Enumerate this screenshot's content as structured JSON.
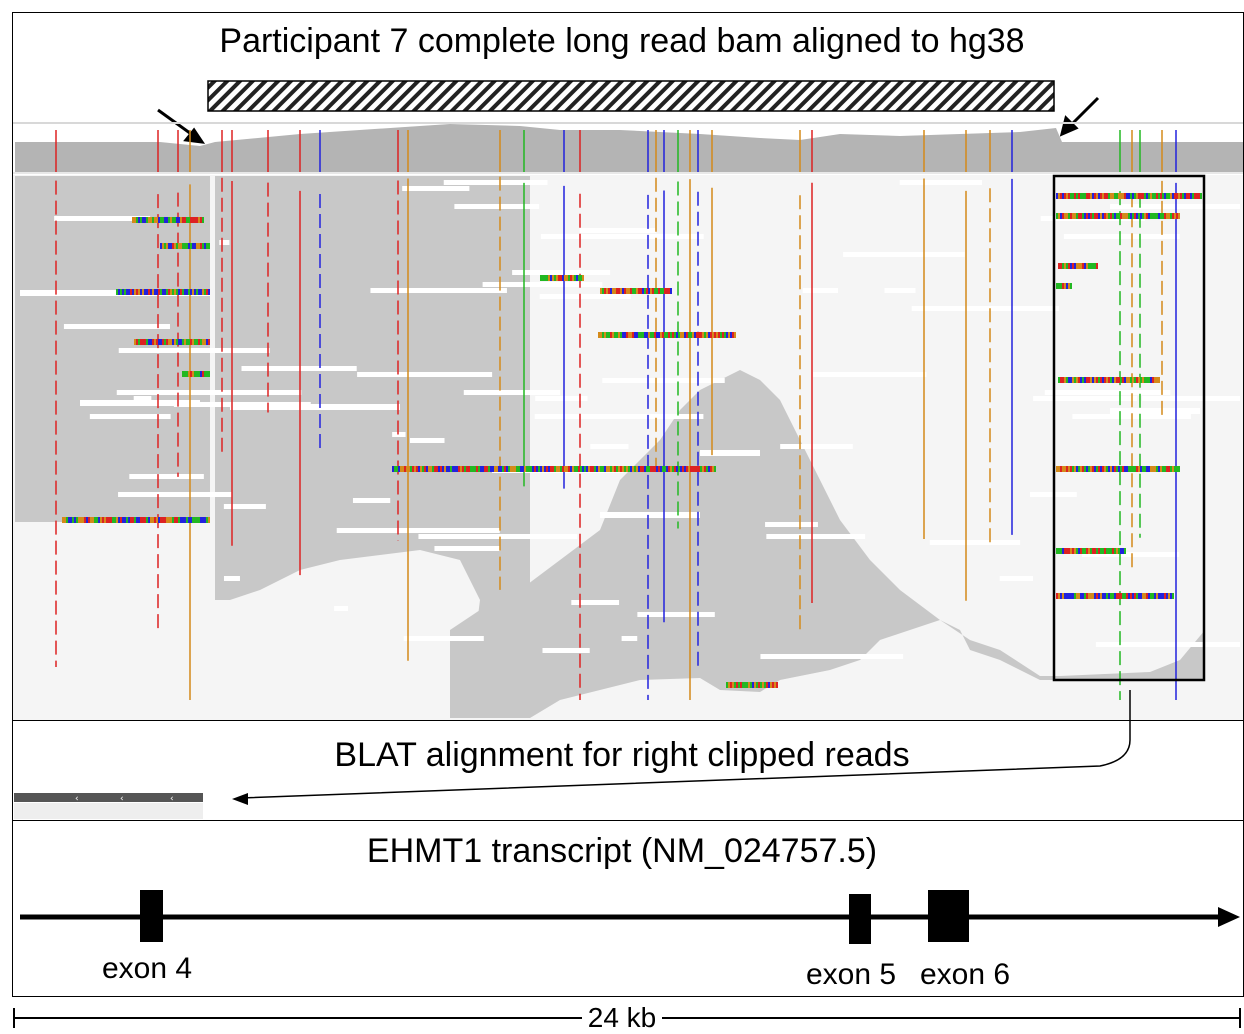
{
  "figure": {
    "title": "Participant 7 complete long read bam aligned to hg38",
    "blat_label": "BLAT alignment for right clipped reads",
    "transcript_label": "EHMT1 transcript (NM_024757.5)",
    "exons": [
      {
        "label": "exon 4"
      },
      {
        "label": "exon 5"
      },
      {
        "label": "exon 6"
      }
    ],
    "scale_label": "24 kb",
    "colors": {
      "read": "#c8c8c8",
      "coverage": "#b4b4b4",
      "mismatch_A": "#22b822",
      "mismatch_C": "#2222dd",
      "mismatch_G": "#d48a1a",
      "mismatch_T": "#dd2222",
      "blat": "#555555"
    }
  }
}
